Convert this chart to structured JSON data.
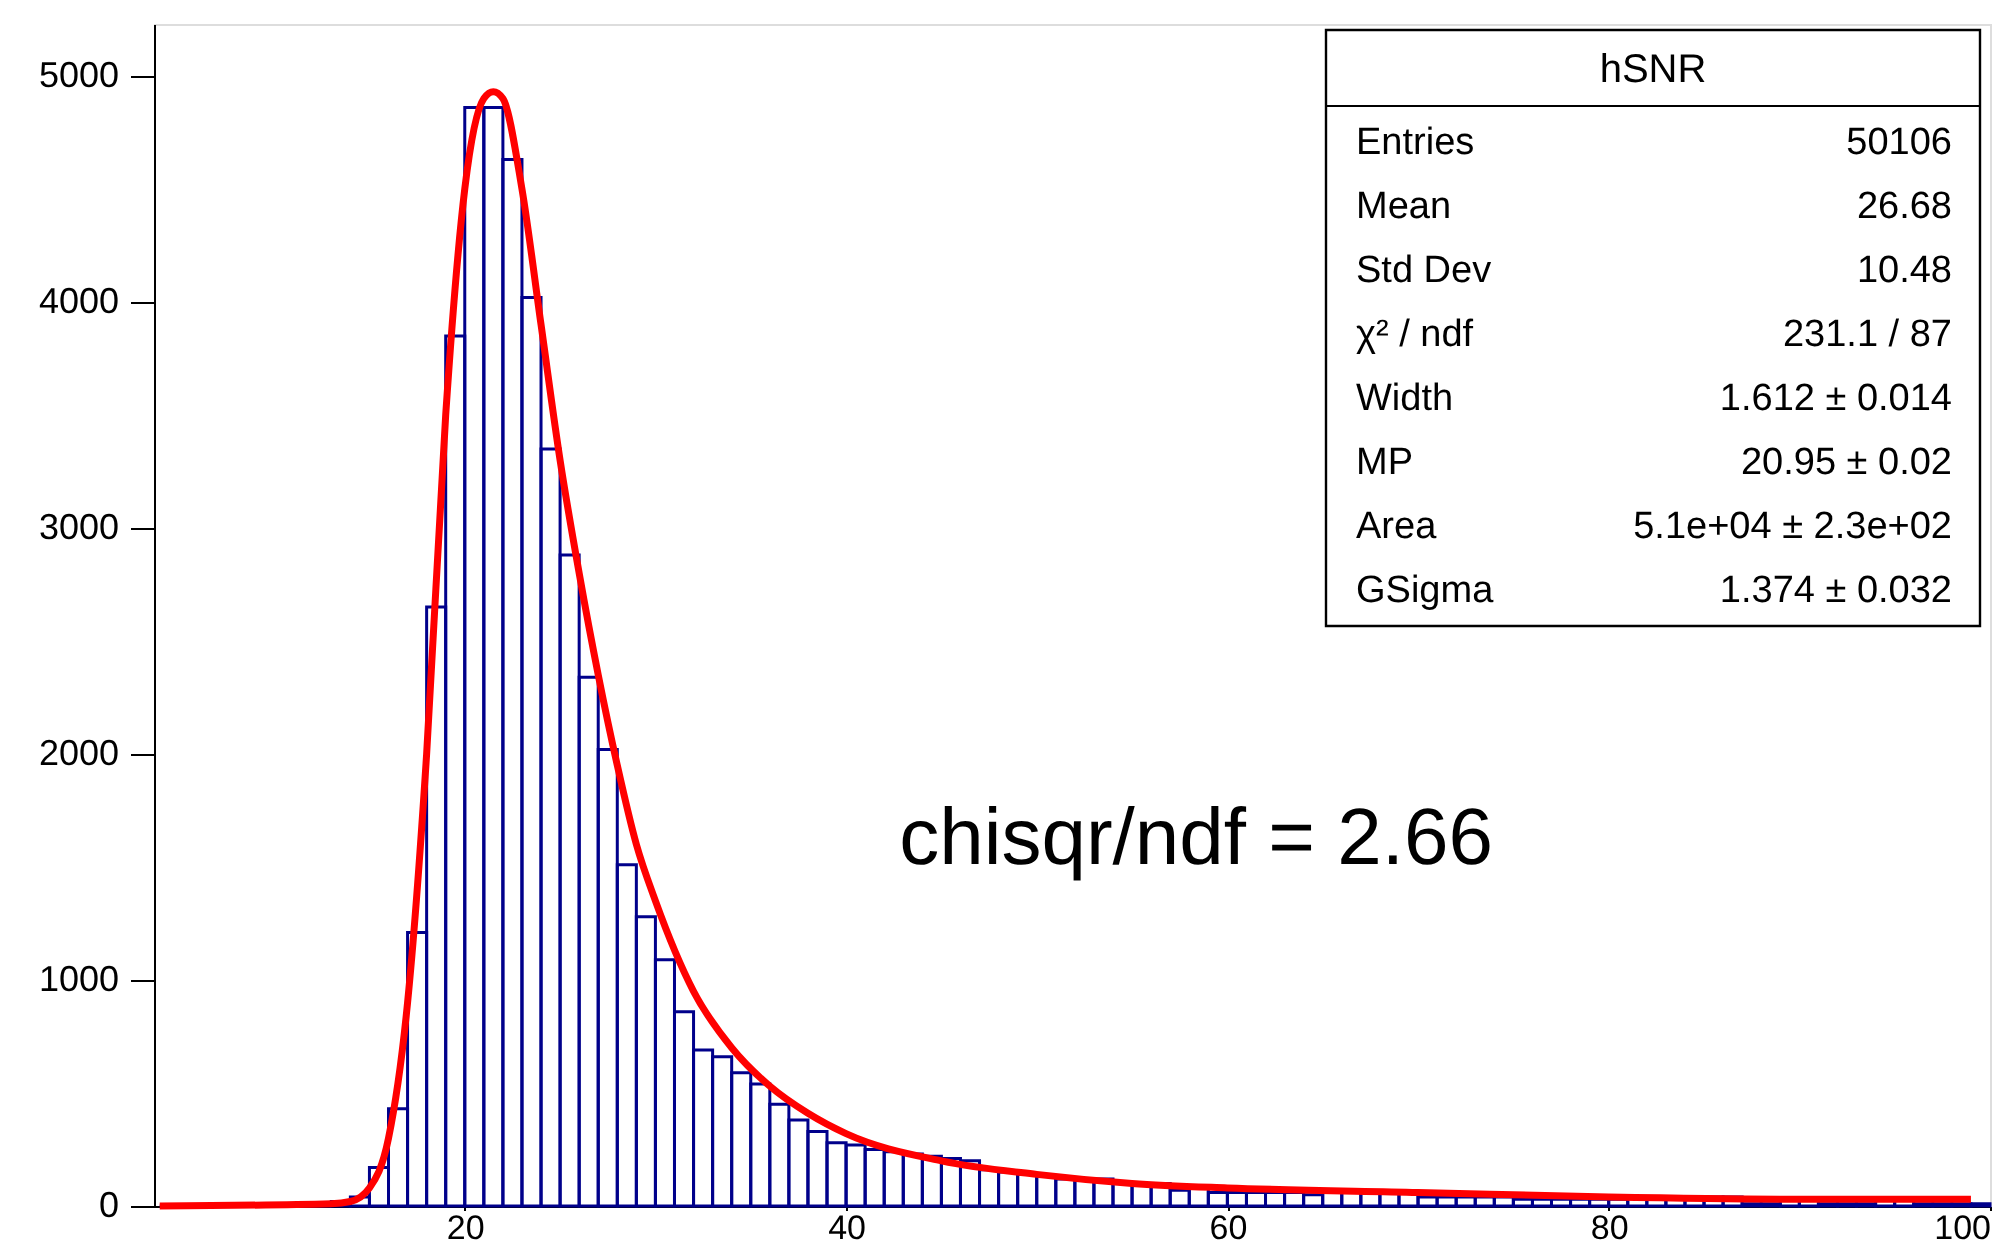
{
  "chart_data": {
    "type": "histogram",
    "series": [
      {
        "color": "#00008b",
        "bins": [
          4,
          5,
          6,
          7,
          8,
          9,
          10,
          11,
          12,
          13,
          14,
          15,
          16,
          17,
          18,
          19,
          20,
          21,
          22,
          23,
          24,
          25,
          26,
          27,
          28,
          29,
          30,
          31,
          32,
          33,
          34,
          35,
          36,
          37,
          38,
          39,
          40,
          41,
          42,
          43,
          44,
          45,
          46,
          47,
          48,
          49,
          50,
          51,
          52,
          53,
          54,
          55,
          56,
          57,
          58,
          59,
          60,
          61,
          62,
          63,
          64,
          65,
          66,
          67,
          68,
          69,
          70,
          71,
          72,
          73,
          74,
          75,
          76,
          77,
          78,
          79,
          80,
          81,
          82,
          83,
          84,
          85,
          86,
          87,
          88,
          89,
          90,
          91,
          92,
          93,
          94,
          95,
          96,
          97,
          98,
          99,
          100
        ],
        "values": [
          0,
          0,
          0,
          0,
          0,
          0,
          0,
          0,
          0,
          20,
          40,
          170,
          430,
          1210,
          2650,
          3850,
          4860,
          4860,
          4630,
          4020,
          3350,
          2880,
          2340,
          2020,
          1510,
          1280,
          1090,
          860,
          690,
          660,
          590,
          540,
          450,
          380,
          330,
          280,
          270,
          250,
          240,
          230,
          220,
          210,
          200,
          160,
          150,
          140,
          130,
          120,
          120,
          120,
          100,
          100,
          100,
          70,
          80,
          60,
          60,
          60,
          60,
          60,
          50,
          60,
          60,
          60,
          60,
          60,
          40,
          40,
          40,
          40,
          40,
          30,
          30,
          30,
          30,
          30,
          30,
          40,
          40,
          40,
          40,
          40,
          40,
          10,
          10,
          30,
          30,
          10,
          10,
          10,
          30,
          30,
          10,
          10,
          10,
          10
        ]
      },
      {
        "type": "line",
        "color": "#ff0000",
        "x": [
          4,
          13,
          14,
          15,
          16,
          17,
          18,
          19,
          20,
          21,
          21.5,
          22,
          23,
          24,
          25,
          26,
          27,
          28,
          29,
          30,
          32,
          34,
          36,
          38,
          40,
          45,
          50,
          55,
          60,
          70,
          80,
          90,
          99
        ],
        "values": [
          0,
          10,
          20,
          80,
          300,
          900,
          2000,
          3500,
          4500,
          4900,
          4930,
          4900,
          4500,
          3900,
          3300,
          2800,
          2350,
          1950,
          1600,
          1350,
          950,
          700,
          530,
          410,
          320,
          200,
          140,
          100,
          80,
          60,
          40,
          30,
          30
        ]
      }
    ],
    "xlim": [
      3.7,
      100
    ],
    "xticks": [
      20,
      40,
      60,
      80,
      100
    ],
    "ylim": [
      0,
      5230
    ],
    "yticks": [
      0,
      1000,
      2000,
      3000,
      4000,
      5000
    ],
    "grid": false,
    "annotations": [
      "hSNR",
      "Entries",
      "50106",
      "Mean",
      "26.68",
      "Std Dev",
      "10.48",
      "χ² / ndf",
      "231.1 / 87",
      "Width",
      "1.612 ± 0.014",
      "MP",
      "20.95 ± 0.02",
      "Area",
      "5.1e+04 ± 2.3e+02",
      "GSigma",
      "1.374 ± 0.032",
      "chisqr/ndf = 2.66"
    ]
  }
}
